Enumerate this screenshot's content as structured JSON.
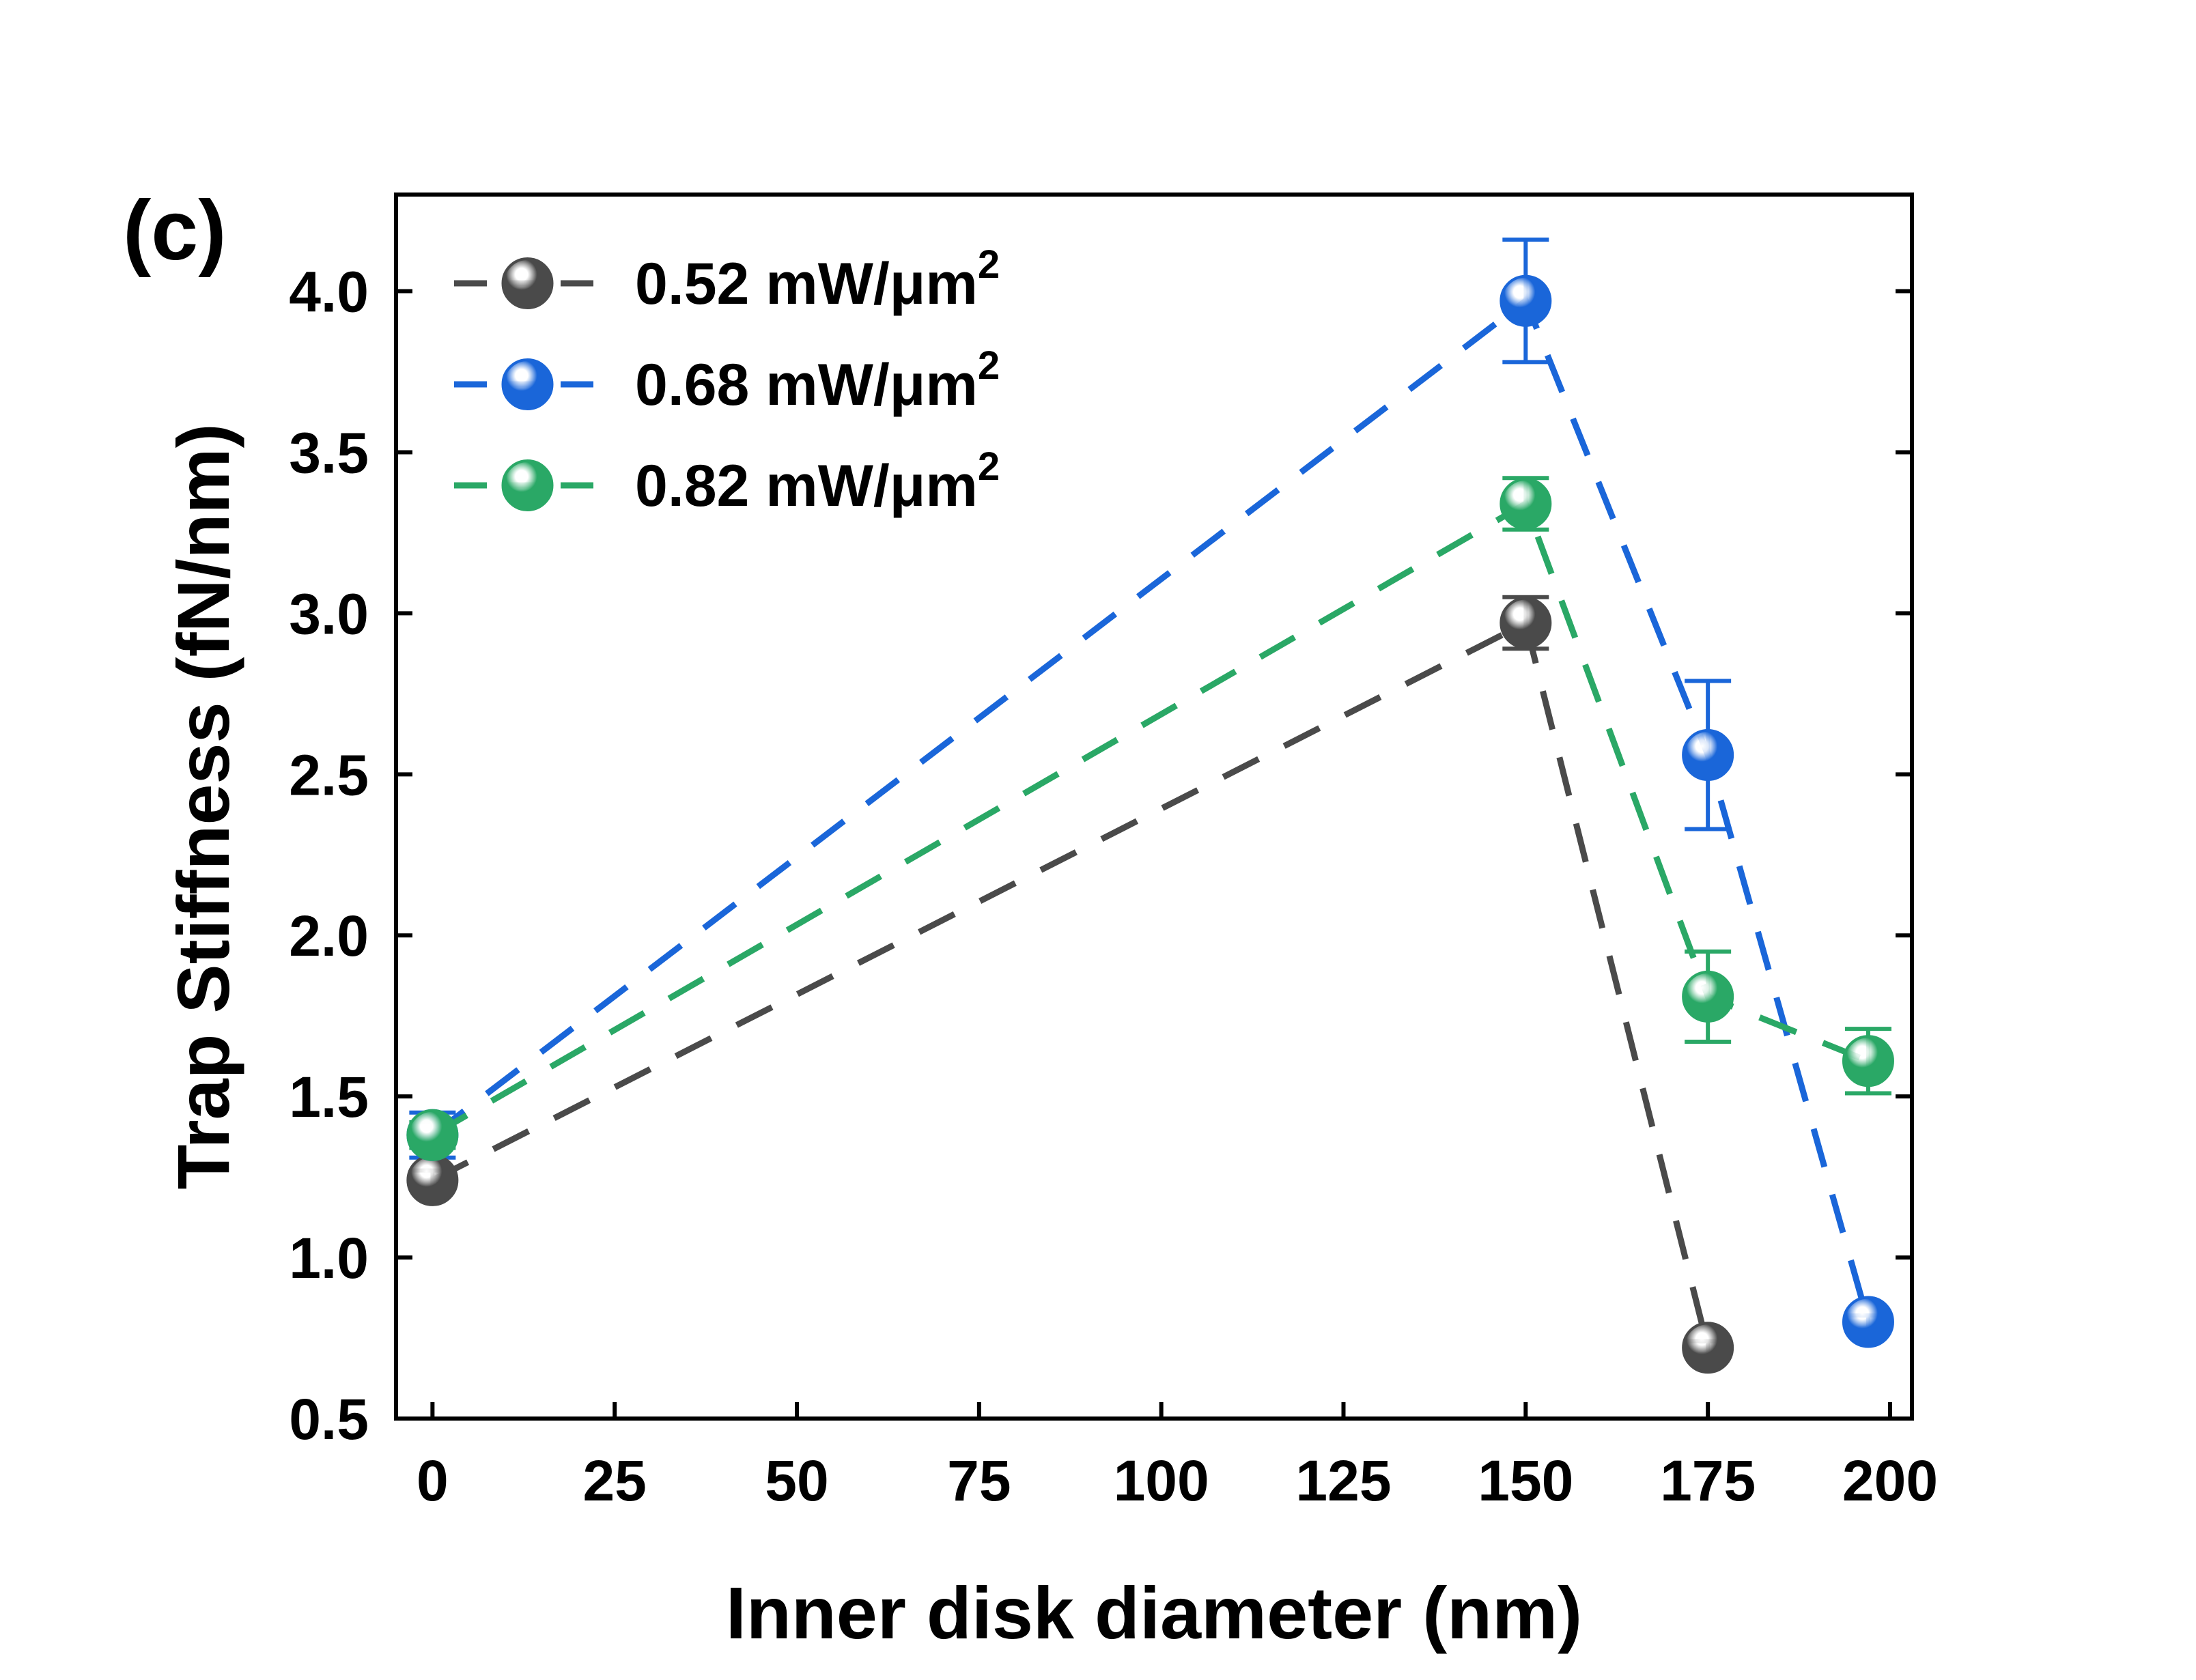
{
  "chart_data": {
    "type": "line",
    "panel_label": "(c)",
    "xlabel": "Inner disk diameter (nm)",
    "ylabel": "Trap Stiffness (fN/nm)",
    "xlim": [
      -5,
      203
    ],
    "ylim": [
      0.5,
      4.3
    ],
    "xticks": [
      0,
      25,
      50,
      75,
      100,
      125,
      150,
      175,
      200
    ],
    "xtick_labels": [
      "0",
      "25",
      "50",
      "75",
      "100",
      "125",
      "150",
      "175",
      "200"
    ],
    "yticks": [
      0.5,
      1.0,
      1.5,
      2.0,
      2.5,
      3.0,
      3.5,
      4.0
    ],
    "ytick_labels": [
      "0.5",
      "1.0",
      "1.5",
      "2.0",
      "2.5",
      "3.0",
      "3.5",
      "4.0"
    ],
    "legend_position": "top-left",
    "series": [
      {
        "name": "0.52 mW/μm",
        "superscript": "2",
        "color": "#4a4a4a",
        "x": [
          0,
          150,
          175
        ],
        "y": [
          1.24,
          2.97,
          0.72
        ],
        "err": [
          0.03,
          0.08,
          0.02
        ]
      },
      {
        "name": "0.68 mW/μm",
        "superscript": "2",
        "color": "#1a66d9",
        "x": [
          0,
          150,
          175,
          197
        ],
        "y": [
          1.38,
          3.97,
          2.56,
          0.8
        ],
        "err": [
          0.07,
          0.19,
          0.23,
          0.02
        ]
      },
      {
        "name": "0.82 mW/μm",
        "superscript": "2",
        "color": "#2aa866",
        "x": [
          0,
          150,
          175,
          197
        ],
        "y": [
          1.38,
          3.34,
          1.81,
          1.61
        ],
        "err": [
          0.04,
          0.08,
          0.14,
          0.1
        ]
      }
    ]
  }
}
